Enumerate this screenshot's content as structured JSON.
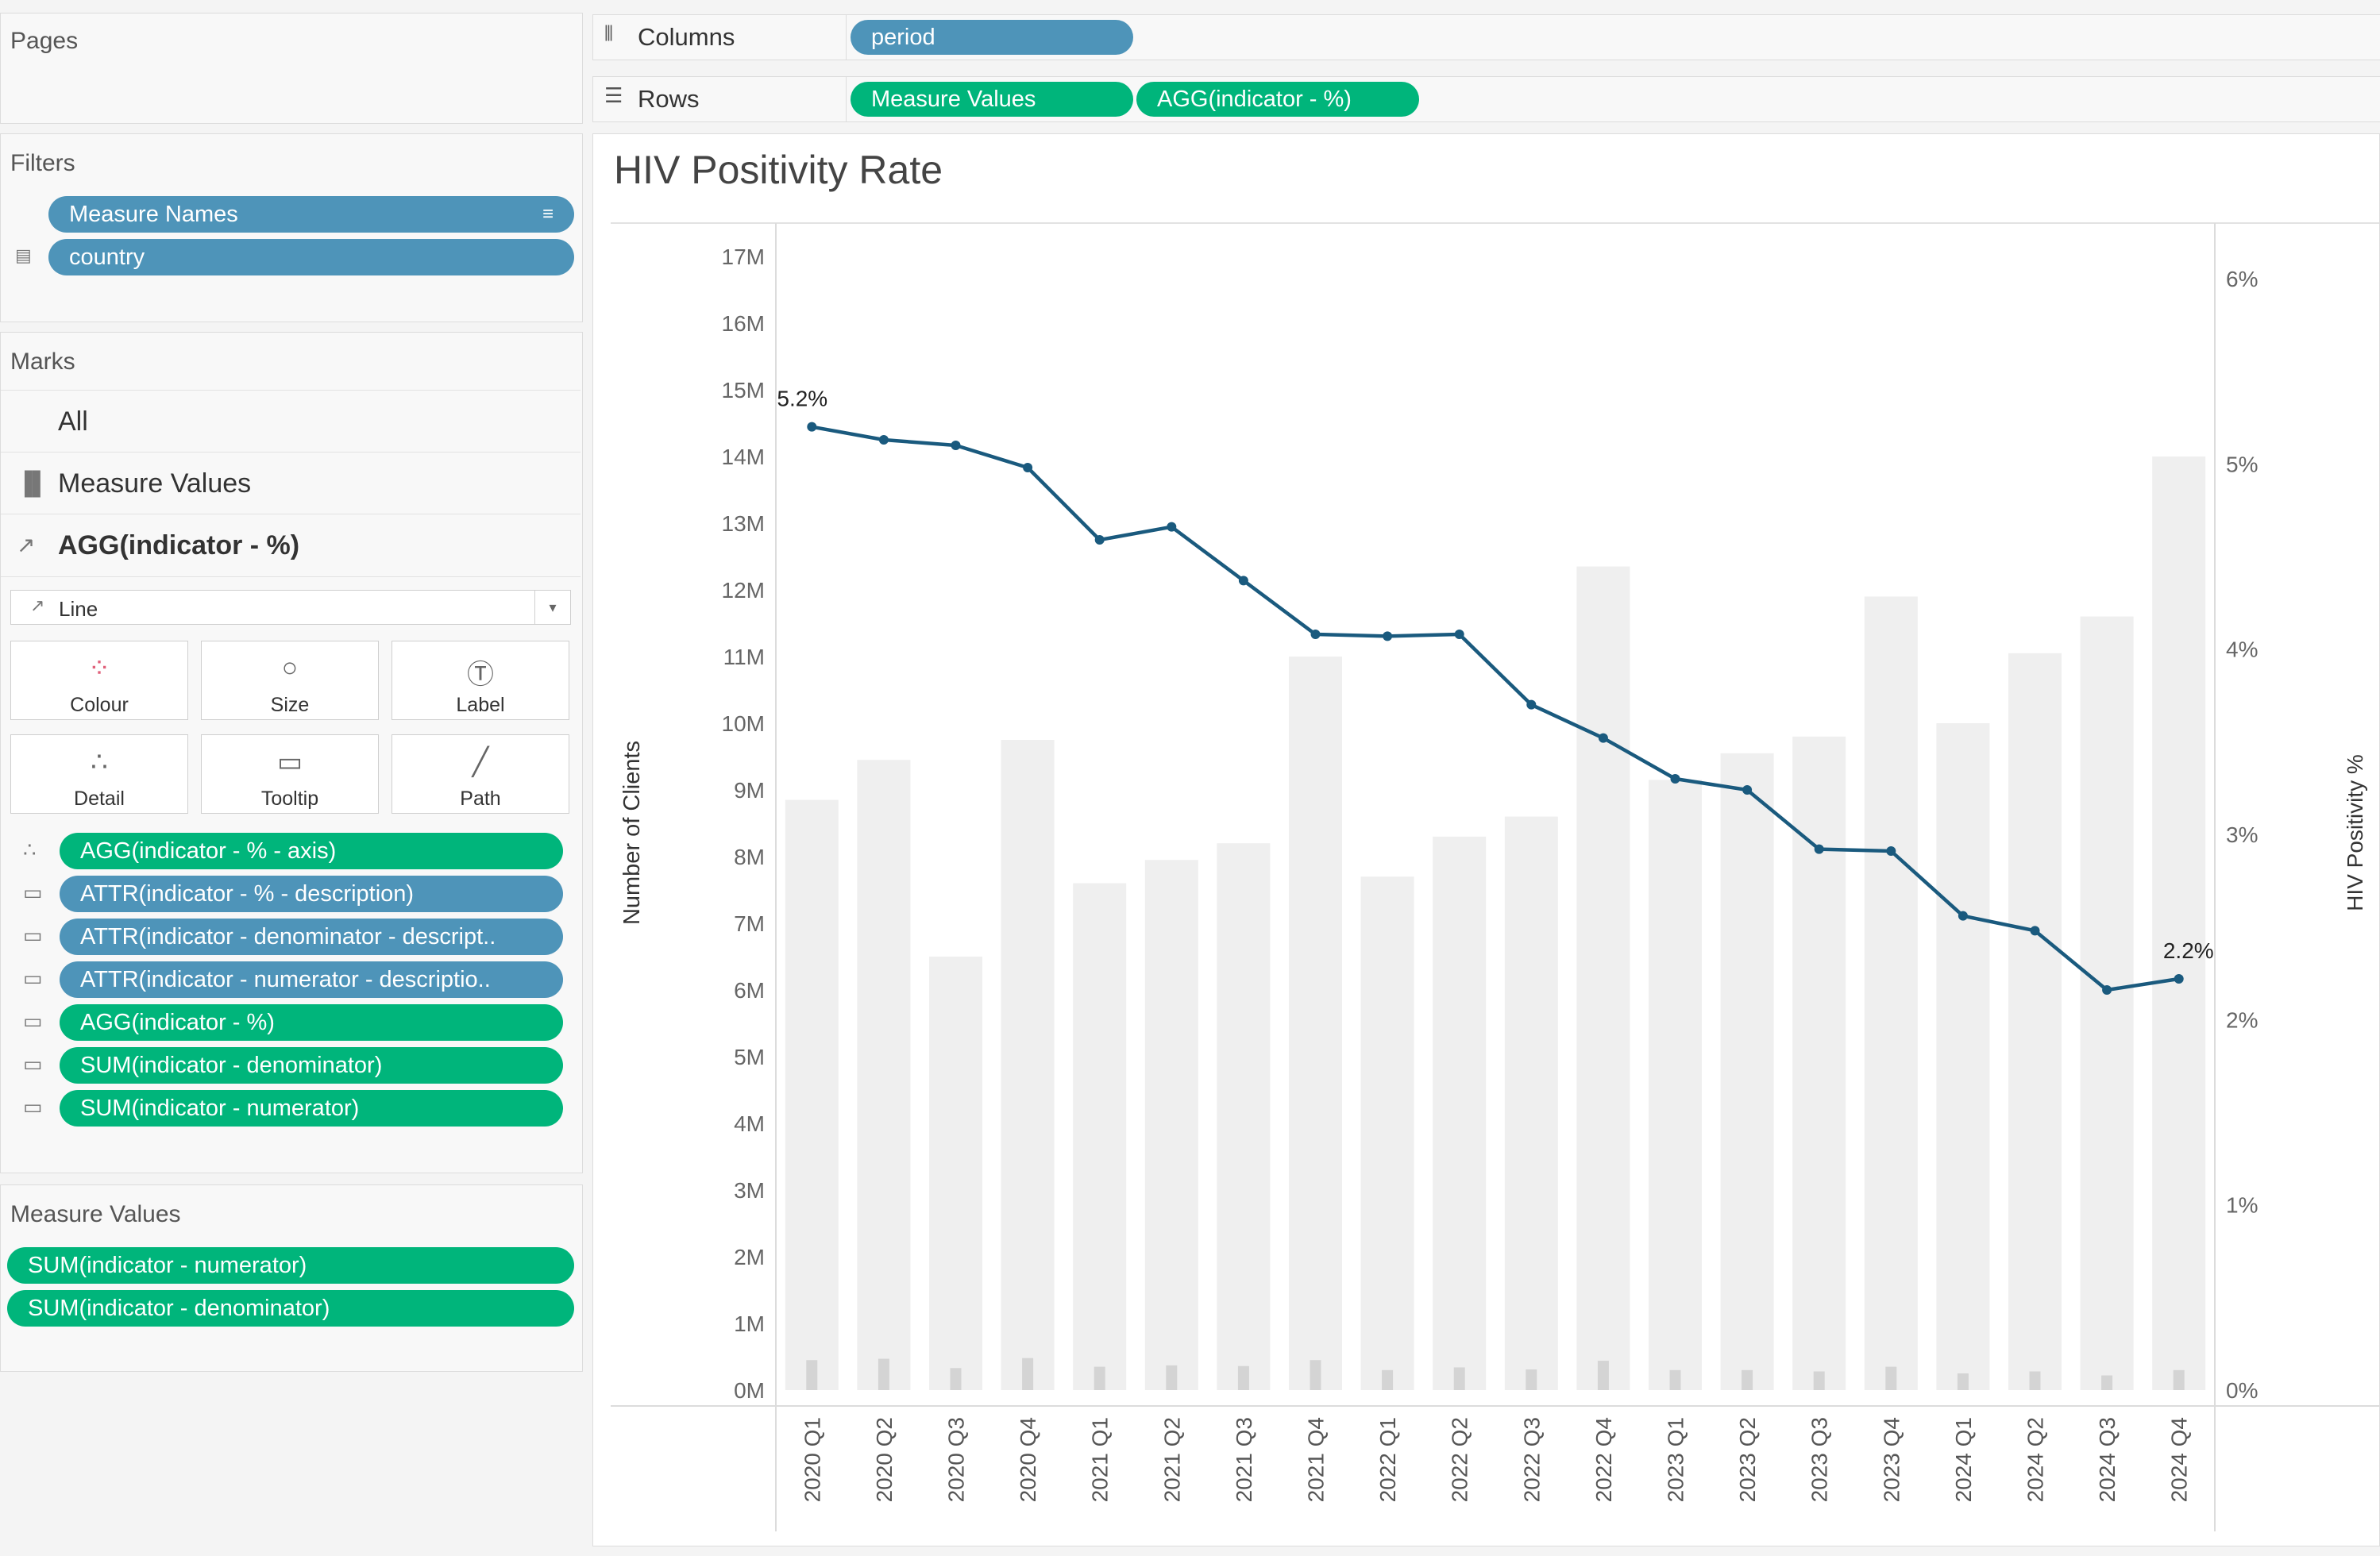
{
  "left": {
    "pages": {
      "title": "Pages"
    },
    "filters": {
      "title": "Filters",
      "items": [
        "Measure Names",
        "country"
      ]
    },
    "marks": {
      "title": "Marks",
      "layers": [
        "All",
        "Measure Values",
        "AGG(indicator - %)"
      ],
      "mark_type": "Line",
      "cards": [
        "Colour",
        "Size",
        "Label",
        "Detail",
        "Tooltip",
        "Path"
      ],
      "properties": [
        "AGG(indicator - % - axis)",
        "ATTR(indicator - % - description)",
        "ATTR(indicator - denominator - descript..",
        "ATTR(indicator - numerator - descriptio..",
        "AGG(indicator - %)",
        "SUM(indicator - denominator)",
        "SUM(indicator - numerator)"
      ]
    },
    "measure_values": {
      "title": "Measure Values",
      "items": [
        "SUM(indicator - numerator)",
        "SUM(indicator - denominator)"
      ]
    }
  },
  "shelves": {
    "columns": {
      "label": "Columns",
      "pills": [
        "period"
      ]
    },
    "rows": {
      "label": "Rows",
      "pills": [
        "Measure Values",
        "AGG(indicator - %)"
      ]
    }
  },
  "icons": {
    "columns": "columns-icon",
    "rows": "rows-icon",
    "sort": "sort-icon",
    "filter": "filter-icon",
    "bar": "bar-chart-icon",
    "line": "line-icon",
    "dropdown": "chevron-down-icon",
    "colour": "colour-icon",
    "size": "size-icon",
    "label": "label-icon",
    "detail": "detail-icon",
    "tooltip": "tooltip-icon",
    "path": "path-icon"
  },
  "chart_data": {
    "type": "bar",
    "title": "HIV Positivity Rate",
    "ylabel": "Number of Clients",
    "y2label": "HIV Positivity %",
    "categories": [
      "2020 Q1",
      "2020 Q2",
      "2020 Q3",
      "2020 Q4",
      "2021 Q1",
      "2021 Q2",
      "2021 Q3",
      "2021 Q4",
      "2022 Q1",
      "2022 Q2",
      "2022 Q3",
      "2022 Q4",
      "2023 Q1",
      "2023 Q2",
      "2023 Q3",
      "2023 Q4",
      "2024 Q1",
      "2024 Q2",
      "2024 Q3",
      "2024 Q4"
    ],
    "y_ticks": [
      "0M",
      "1M",
      "2M",
      "3M",
      "4M",
      "5M",
      "6M",
      "7M",
      "8M",
      "9M",
      "10M",
      "11M",
      "12M",
      "13M",
      "14M",
      "15M",
      "16M",
      "17M"
    ],
    "y2_ticks": [
      "0%",
      "1%",
      "2%",
      "3%",
      "4%",
      "5%",
      "6%"
    ],
    "ylim": [
      0,
      17.5
    ],
    "y2lim": [
      0,
      6.3
    ],
    "series": [
      {
        "values": [
          8.85,
          9.45,
          6.5,
          9.75,
          7.6,
          7.95,
          8.2,
          11.0,
          7.7,
          8.3,
          8.6,
          12.35,
          9.15,
          9.55,
          9.8,
          11.9,
          10.0,
          11.05,
          11.6,
          14.0
        ]
      },
      {
        "values": [
          0.45,
          0.47,
          0.33,
          0.48,
          0.35,
          0.37,
          0.36,
          0.45,
          0.3,
          0.34,
          0.31,
          0.44,
          0.3,
          0.3,
          0.28,
          0.35,
          0.25,
          0.28,
          0.22,
          0.3
        ]
      },
      {
        "type": "line",
        "values": [
          5.2,
          5.13,
          5.1,
          4.98,
          4.59,
          4.66,
          4.37,
          4.08,
          4.07,
          4.08,
          3.7,
          3.52,
          3.3,
          3.24,
          2.92,
          2.91,
          2.56,
          2.48,
          2.16,
          2.22
        ]
      }
    ],
    "annotations": [
      {
        "category": "2020 Q1",
        "text": "5.2%"
      },
      {
        "category": "2024 Q4",
        "text": "2.2%"
      }
    ],
    "colors": {
      "denominator_bar": "#efefef",
      "numerator_bar": "#d4d4d4",
      "line": "#1a5a7e",
      "grid": "#e6e6e6"
    },
    "grid": false
  }
}
